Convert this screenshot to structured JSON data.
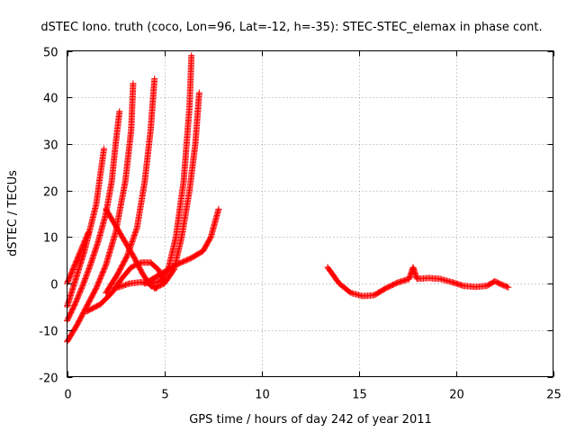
{
  "chart_data": {
    "type": "scatter",
    "title": "dSTEC Iono. truth (coco, Lon=96, Lat=-12, h=-35): STEC-STEC_elemax in phase cont.",
    "xlabel": "GPS time / hours of day 242 of year 2011",
    "ylabel": "dSTEC  / TECUs",
    "xlim": [
      0,
      25
    ],
    "ylim": [
      -20,
      50
    ],
    "xticks": [
      0,
      5,
      10,
      15,
      20,
      25
    ],
    "yticks": [
      -20,
      -10,
      0,
      10,
      20,
      30,
      40,
      50
    ],
    "grid": true,
    "marker": "+",
    "color": "#ff0000",
    "series": [
      {
        "values": [
          [
            0.0,
            0.0
          ],
          [
            0.3,
            3.0
          ],
          [
            0.6,
            6.0
          ],
          [
            0.9,
            9.0
          ],
          [
            1.1,
            11.0
          ]
        ]
      },
      {
        "values": [
          [
            0.0,
            -5.0
          ],
          [
            0.3,
            -1.0
          ],
          [
            0.6,
            3.0
          ],
          [
            0.9,
            7.0
          ],
          [
            1.2,
            12.0
          ],
          [
            1.5,
            17.0
          ],
          [
            1.7,
            23.0
          ],
          [
            1.9,
            29.0
          ]
        ]
      },
      {
        "values": [
          [
            0.0,
            -8.0
          ],
          [
            0.4,
            -4.5
          ],
          [
            0.8,
            -0.5
          ],
          [
            1.2,
            4.0
          ],
          [
            1.6,
            9.0
          ],
          [
            2.0,
            15.0
          ],
          [
            2.3,
            22.0
          ],
          [
            2.5,
            30.0
          ],
          [
            2.7,
            37.0
          ]
        ]
      },
      {
        "values": [
          [
            0.0,
            -12.5
          ],
          [
            0.5,
            -9.0
          ],
          [
            1.0,
            -5.0
          ],
          [
            1.5,
            -1.0
          ],
          [
            2.0,
            4.0
          ],
          [
            2.5,
            11.0
          ],
          [
            3.0,
            22.0
          ],
          [
            3.3,
            33.0
          ],
          [
            3.4,
            43.0
          ]
        ]
      },
      {
        "values": [
          [
            2.0,
            -2.0
          ],
          [
            2.6,
            2.0
          ],
          [
            3.1,
            6.0
          ],
          [
            3.6,
            12.0
          ],
          [
            4.0,
            22.0
          ],
          [
            4.3,
            33.0
          ],
          [
            4.5,
            44.0
          ]
        ]
      },
      {
        "values": [
          [
            2.0,
            16.0
          ],
          [
            2.7,
            11.0
          ],
          [
            3.4,
            6.0
          ],
          [
            3.9,
            2.0
          ],
          [
            4.3,
            -0.5
          ],
          [
            4.6,
            -1.0
          ]
        ]
      },
      {
        "values": [
          [
            1.0,
            -6.0
          ],
          [
            1.7,
            -4.5
          ],
          [
            2.3,
            -2.0
          ],
          [
            2.8,
            1.0
          ],
          [
            3.3,
            3.5
          ],
          [
            3.8,
            4.5
          ],
          [
            4.3,
            4.5
          ],
          [
            4.7,
            3.0
          ],
          [
            5.0,
            0.5
          ]
        ]
      },
      {
        "values": [
          [
            2.5,
            -1.0
          ],
          [
            3.2,
            0.0
          ],
          [
            3.8,
            0.3
          ],
          [
            4.3,
            0.0
          ],
          [
            4.8,
            0.5
          ],
          [
            5.2,
            3.0
          ],
          [
            5.6,
            10.0
          ],
          [
            6.0,
            22.0
          ],
          [
            6.3,
            38.0
          ],
          [
            6.4,
            49.0
          ]
        ]
      },
      {
        "values": [
          [
            4.5,
            -1.0
          ],
          [
            5.0,
            0.0
          ],
          [
            5.5,
            3.0
          ],
          [
            5.9,
            10.0
          ],
          [
            6.3,
            20.0
          ],
          [
            6.6,
            30.0
          ],
          [
            6.8,
            41.0
          ]
        ]
      },
      {
        "values": [
          [
            4.0,
            0.0
          ],
          [
            4.8,
            2.0
          ],
          [
            5.6,
            4.0
          ],
          [
            6.4,
            5.5
          ],
          [
            7.0,
            7.0
          ],
          [
            7.4,
            10.0
          ],
          [
            7.8,
            16.0
          ]
        ]
      },
      {
        "values": [
          [
            13.4,
            3.5
          ],
          [
            14.0,
            0.0
          ],
          [
            14.6,
            -2.0
          ],
          [
            15.2,
            -2.7
          ],
          [
            15.8,
            -2.5
          ],
          [
            16.4,
            -1.0
          ],
          [
            17.0,
            0.2
          ],
          [
            17.6,
            1.0
          ],
          [
            17.8,
            3.5
          ],
          [
            18.0,
            1.0
          ],
          [
            18.6,
            1.2
          ],
          [
            19.2,
            1.0
          ],
          [
            19.8,
            0.3
          ],
          [
            20.4,
            -0.5
          ],
          [
            21.0,
            -0.7
          ],
          [
            21.6,
            -0.5
          ],
          [
            22.0,
            0.5
          ],
          [
            22.4,
            -0.3
          ],
          [
            22.7,
            -0.8
          ]
        ]
      }
    ]
  }
}
